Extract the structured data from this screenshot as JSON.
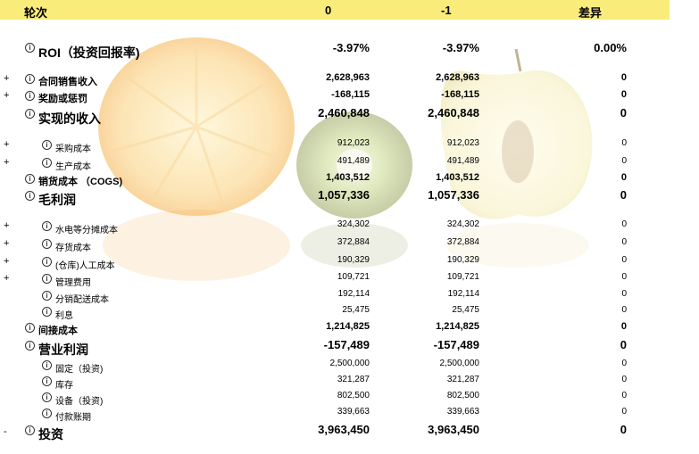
{
  "header": {
    "label": "轮次",
    "col0": "0",
    "col1": "-1",
    "diff": "差异"
  },
  "rows": [
    {
      "exp": "",
      "label": "ROI（投资回报率)",
      "c0": "-3.97%",
      "c1": "-3.97%",
      "d": "0.00%"
    },
    {
      "exp": "+",
      "label": "合同销售收入",
      "c0": "2,628,963",
      "c1": "2,628,963",
      "d": "0"
    },
    {
      "exp": "+",
      "label": "奖励或惩罚",
      "c0": "-168,115",
      "c1": "-168,115",
      "d": "0"
    },
    {
      "exp": "",
      "label": "实现的收入",
      "c0": "2,460,848",
      "c1": "2,460,848",
      "d": "0"
    },
    {
      "exp": "+",
      "label": "采购成本",
      "c0": "912,023",
      "c1": "912,023",
      "d": "0"
    },
    {
      "exp": "+",
      "label": "生产成本",
      "c0": "491,489",
      "c1": "491,489",
      "d": "0"
    },
    {
      "exp": "",
      "label": "销货成本 （COGS)",
      "c0": "1,403,512",
      "c1": "1,403,512",
      "d": "0"
    },
    {
      "exp": "",
      "label": "毛利润",
      "c0": "1,057,336",
      "c1": "1,057,336",
      "d": "0"
    },
    {
      "exp": "+",
      "label": "水电等分摊成本",
      "c0": "324,302",
      "c1": "324,302",
      "d": "0"
    },
    {
      "exp": "+",
      "label": "存货成本",
      "c0": "372,884",
      "c1": "372,884",
      "d": "0"
    },
    {
      "exp": "+",
      "label": "(仓库)人工成本",
      "c0": "190,329",
      "c1": "190,329",
      "d": "0"
    },
    {
      "exp": "+",
      "label": "管理费用",
      "c0": "109,721",
      "c1": "109,721",
      "d": "0"
    },
    {
      "exp": "",
      "label": "分销配送成本",
      "c0": "192,114",
      "c1": "192,114",
      "d": "0"
    },
    {
      "exp": "",
      "label": "利息",
      "c0": "25,475",
      "c1": "25,475",
      "d": "0"
    },
    {
      "exp": "",
      "label": "间接成本",
      "c0": "1,214,825",
      "c1": "1,214,825",
      "d": "0"
    },
    {
      "exp": "",
      "label": "营业利润",
      "c0": "-157,489",
      "c1": "-157,489",
      "d": "0"
    },
    {
      "exp": "",
      "label": "固定（投资)",
      "c0": "2,500,000",
      "c1": "2,500,000",
      "d": "0"
    },
    {
      "exp": "",
      "label": "库存",
      "c0": "321,287",
      "c1": "321,287",
      "d": "0"
    },
    {
      "exp": "",
      "label": "设备（投资)",
      "c0": "802,500",
      "c1": "802,500",
      "d": "0"
    },
    {
      "exp": "",
      "label": "付款账期",
      "c0": "339,663",
      "c1": "339,663",
      "d": "0"
    },
    {
      "exp": "-",
      "label": "投资",
      "c0": "3,963,450",
      "c1": "3,963,450",
      "d": "0"
    }
  ],
  "info_glyph": "i",
  "colors": {
    "header_bg": "#f9ec7a"
  }
}
